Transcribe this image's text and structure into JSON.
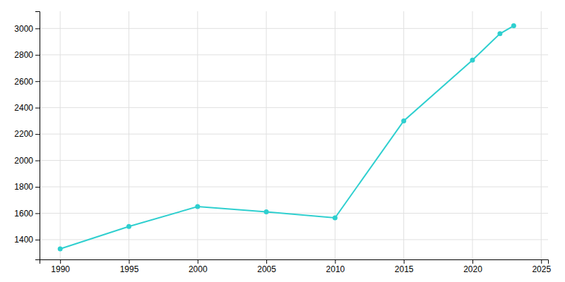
{
  "chart_data": {
    "type": "line",
    "x": [
      1990,
      1995,
      2000,
      2005,
      2010,
      2015,
      2020,
      2022,
      2023
    ],
    "series": [
      {
        "values": [
          1330,
          1500,
          1650,
          1610,
          1565,
          2300,
          2760,
          2960,
          3020
        ],
        "color": "#2ecfcf",
        "marker": "circle"
      }
    ],
    "xlim": [
      1988.5,
      2025.5
    ],
    "ylim": [
      1250,
      3130
    ],
    "xticks": [
      1990,
      1995,
      2000,
      2005,
      2010,
      2015,
      2020,
      2025
    ],
    "yticks": [
      1400,
      1600,
      1800,
      2000,
      2200,
      2400,
      2600,
      2800,
      3000
    ],
    "grid": true
  }
}
